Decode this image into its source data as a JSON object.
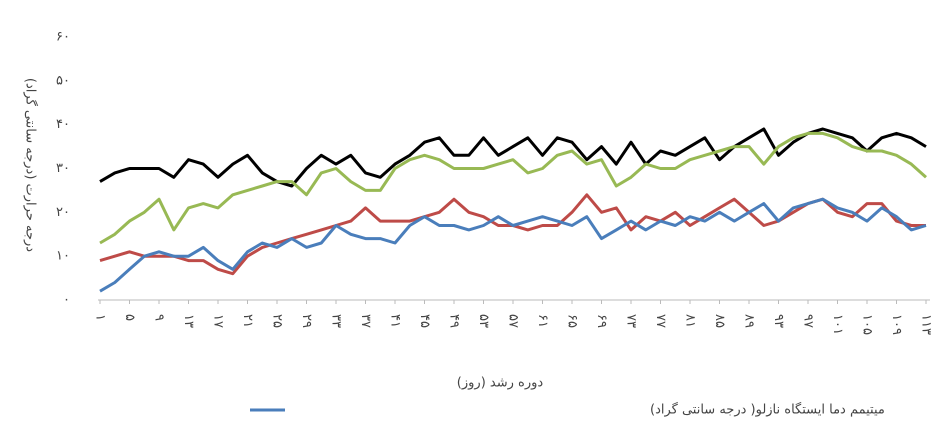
{
  "chart_data": {
    "type": "line",
    "ylabel": "درجه حرارت (درجه سانتی گراد)",
    "xlabel": "دوره رشد (روز)",
    "x": [
      1,
      3,
      5,
      7,
      9,
      11,
      13,
      15,
      17,
      19,
      21,
      23,
      25,
      27,
      29,
      31,
      33,
      35,
      37,
      39,
      41,
      43,
      45,
      47,
      49,
      51,
      53,
      55,
      57,
      59,
      61,
      63,
      65,
      67,
      69,
      71,
      73,
      75,
      77,
      79,
      81,
      83,
      85,
      87,
      89,
      91,
      93,
      95,
      97,
      99,
      101,
      103,
      105,
      107,
      109,
      111,
      113
    ],
    "xlim": [
      1,
      113
    ],
    "xticks": [
      {
        "value": 1,
        "label": "۱"
      },
      {
        "value": 5,
        "label": "۵"
      },
      {
        "value": 9,
        "label": "۹"
      },
      {
        "value": 13,
        "label": "۱۳"
      },
      {
        "value": 17,
        "label": "۱۷"
      },
      {
        "value": 21,
        "label": "۲۱"
      },
      {
        "value": 25,
        "label": "۲۵"
      },
      {
        "value": 29,
        "label": "۲۹"
      },
      {
        "value": 33,
        "label": "۳۳"
      },
      {
        "value": 37,
        "label": "۳۷"
      },
      {
        "value": 41,
        "label": "۴۱"
      },
      {
        "value": 45,
        "label": "۴۵"
      },
      {
        "value": 49,
        "label": "۴۹"
      },
      {
        "value": 53,
        "label": "۵۳"
      },
      {
        "value": 57,
        "label": "۵۷"
      },
      {
        "value": 61,
        "label": "۶۱"
      },
      {
        "value": 65,
        "label": "۶۵"
      },
      {
        "value": 69,
        "label": "۶۹"
      },
      {
        "value": 73,
        "label": "۷۳"
      },
      {
        "value": 77,
        "label": "۷۷"
      },
      {
        "value": 81,
        "label": "۸۱"
      },
      {
        "value": 85,
        "label": "۸۵"
      },
      {
        "value": 89,
        "label": "۸۹"
      },
      {
        "value": 93,
        "label": "۹۳"
      },
      {
        "value": 97,
        "label": "۹۷"
      },
      {
        "value": 101,
        "label": "۱۰۱"
      },
      {
        "value": 105,
        "label": "۱۰۵"
      },
      {
        "value": 109,
        "label": "۱۰۹"
      },
      {
        "value": 113,
        "label": "۱۱۳"
      }
    ],
    "ylim": [
      0,
      60
    ],
    "yticks": [
      {
        "value": 0,
        "label": "۰"
      },
      {
        "value": 10,
        "label": "۱۰"
      },
      {
        "value": 20,
        "label": "۲۰"
      },
      {
        "value": 30,
        "label": "۳۰"
      },
      {
        "value": 40,
        "label": "۴۰"
      },
      {
        "value": 50,
        "label": "۵۰"
      },
      {
        "value": 60,
        "label": "۶۰"
      }
    ],
    "grid": false,
    "legend": "bottom",
    "series": [
      {
        "color": "#000000",
        "values": [
          27,
          29,
          30,
          30,
          30,
          28,
          32,
          31,
          28,
          31,
          33,
          29,
          27,
          26,
          30,
          33,
          31,
          33,
          29,
          28,
          31,
          33,
          36,
          37,
          33,
          33,
          37,
          33,
          35,
          37,
          33,
          37,
          36,
          32,
          35,
          31,
          36,
          31,
          34,
          33,
          35,
          37,
          32,
          35,
          37,
          39,
          33,
          36,
          38,
          39,
          38,
          37,
          34,
          37,
          38,
          37,
          35
        ]
      },
      {
        "color": "#98b954",
        "values": [
          13,
          15,
          18,
          20,
          23,
          16,
          21,
          22,
          21,
          24,
          25,
          26,
          27,
          27,
          24,
          29,
          30,
          27,
          25,
          25,
          30,
          32,
          33,
          32,
          30,
          30,
          30,
          31,
          32,
          29,
          30,
          33,
          34,
          31,
          32,
          26,
          28,
          31,
          30,
          30,
          32,
          33,
          34,
          35,
          35,
          31,
          35,
          37,
          38,
          38,
          37,
          35,
          34,
          34,
          33,
          31,
          28
        ]
      },
      {
        "color": "#be4b48",
        "values": [
          9,
          10,
          11,
          10,
          10,
          10,
          9,
          9,
          7,
          6,
          10,
          12,
          13,
          14,
          15,
          16,
          17,
          18,
          21,
          18,
          18,
          18,
          19,
          20,
          23,
          20,
          19,
          17,
          17,
          16,
          17,
          17,
          20,
          24,
          20,
          21,
          16,
          19,
          18,
          20,
          17,
          19,
          21,
          23,
          20,
          17,
          18,
          20,
          22,
          23,
          20,
          19,
          22,
          22,
          18,
          17,
          17
        ]
      },
      {
        "name": "میتیمم دما ایستگاه نازلو( درجه سانتی گراد)",
        "color": "#4a7ebb",
        "values": [
          2,
          4,
          7,
          10,
          11,
          10,
          10,
          12,
          9,
          7,
          11,
          13,
          12,
          14,
          12,
          13,
          17,
          15,
          14,
          14,
          13,
          17,
          19,
          17,
          17,
          16,
          17,
          19,
          17,
          18,
          19,
          18,
          17,
          19,
          14,
          16,
          18,
          16,
          18,
          17,
          19,
          18,
          20,
          18,
          20,
          22,
          18,
          21,
          22,
          23,
          21,
          20,
          18,
          21,
          19,
          16,
          17
        ]
      }
    ]
  }
}
